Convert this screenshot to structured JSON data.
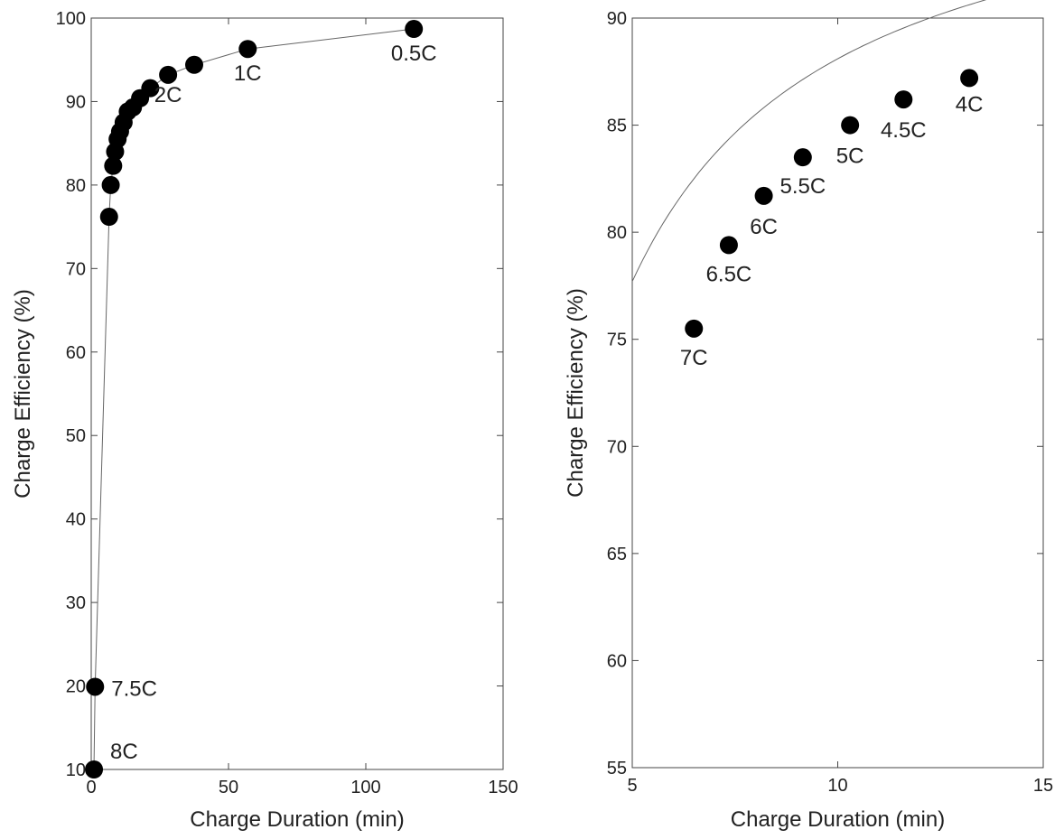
{
  "chart_data": [
    {
      "type": "scatter",
      "xlabel": "Charge Duration (min)",
      "ylabel": "Charge Efficiency (%)",
      "xlim": [
        0,
        150
      ],
      "ylim": [
        10,
        100
      ],
      "xticks": [
        "0",
        "50",
        "100",
        "150"
      ],
      "yticks": [
        "10",
        "20",
        "30",
        "40",
        "50",
        "60",
        "70",
        "80",
        "90",
        "100"
      ],
      "grid": false,
      "series": [
        {
          "points": [
            {
              "x": 1.0,
              "y": 10.0,
              "label": "8C"
            },
            {
              "x": 1.4,
              "y": 19.9,
              "label": "7.5C"
            },
            {
              "x": 6.5,
              "y": 76.2
            },
            {
              "x": 7.1,
              "y": 80.0
            },
            {
              "x": 8.0,
              "y": 82.3
            },
            {
              "x": 8.7,
              "y": 84.0
            },
            {
              "x": 9.6,
              "y": 85.5
            },
            {
              "x": 10.5,
              "y": 86.4
            },
            {
              "x": 11.8,
              "y": 87.5
            },
            {
              "x": 13.3,
              "y": 88.8
            },
            {
              "x": 15.2,
              "y": 89.3
            },
            {
              "x": 17.8,
              "y": 90.4
            },
            {
              "x": 21.5,
              "y": 91.6
            },
            {
              "x": 28.0,
              "y": 93.2,
              "label": "2C"
            },
            {
              "x": 37.5,
              "y": 94.4
            },
            {
              "x": 57.0,
              "y": 96.3,
              "label": "1C"
            },
            {
              "x": 117.5,
              "y": 98.7,
              "label": "0.5C"
            }
          ]
        }
      ]
    },
    {
      "type": "scatter",
      "xlabel": "Charge Duration (min)",
      "ylabel": "Charge Efficiency (%)",
      "xlim": [
        5,
        15
      ],
      "ylim": [
        55,
        90
      ],
      "xticks": [
        "5",
        "10",
        "15"
      ],
      "yticks": [
        "55",
        "60",
        "65",
        "70",
        "75",
        "80",
        "85",
        "90"
      ],
      "grid": false,
      "series": [
        {
          "points": [
            {
              "x": 6.5,
              "y": 75.5,
              "label": "7C"
            },
            {
              "x": 7.35,
              "y": 79.4,
              "label": "6.5C"
            },
            {
              "x": 8.2,
              "y": 81.7,
              "label": "6C"
            },
            {
              "x": 9.15,
              "y": 83.5,
              "label": "5.5C"
            },
            {
              "x": 10.3,
              "y": 85.0,
              "label": "5C"
            },
            {
              "x": 11.6,
              "y": 86.2,
              "label": "4.5C"
            },
            {
              "x": 13.2,
              "y": 87.2,
              "label": "4C"
            }
          ]
        }
      ]
    }
  ]
}
